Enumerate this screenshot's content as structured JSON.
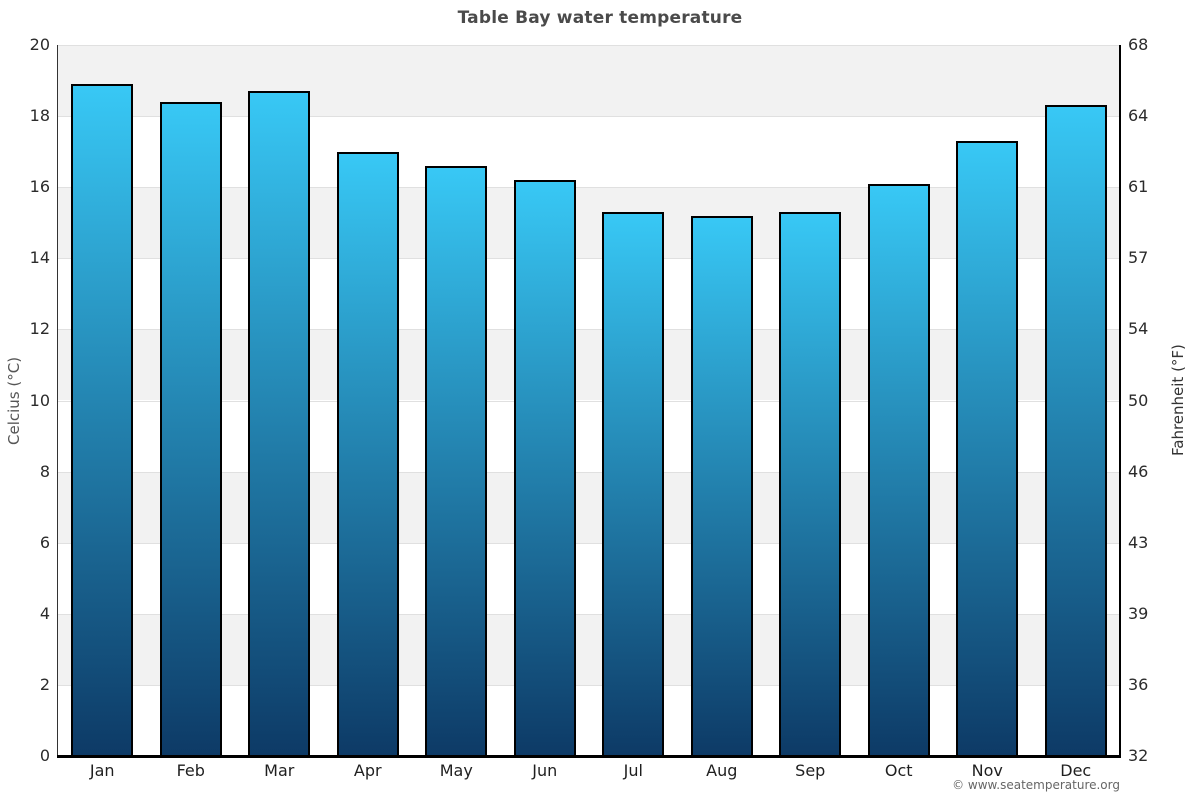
{
  "header": {
    "title": "Table Bay water temperature"
  },
  "footer": {
    "copyright": "© www.seatemperature.org"
  },
  "chart_data": {
    "type": "bar",
    "title": "Table Bay water temperature",
    "categories": [
      "Jan",
      "Feb",
      "Mar",
      "Apr",
      "May",
      "Jun",
      "Jul",
      "Aug",
      "Sep",
      "Oct",
      "Nov",
      "Dec"
    ],
    "values": [
      18.9,
      18.4,
      18.7,
      17.0,
      16.6,
      16.2,
      15.3,
      15.2,
      15.3,
      16.1,
      17.3,
      18.3
    ],
    "unit": "°C",
    "xlabel": "",
    "ylabel_left": "Celcius (°C)",
    "ylabel_right": "Fahrenheit (°F)",
    "ylim_left": [
      0,
      20
    ],
    "ylim_right": [
      32,
      68
    ],
    "yticks_left": [
      20,
      18,
      16,
      14,
      12,
      10,
      8,
      6,
      4,
      2,
      0
    ],
    "yticks_right": [
      68,
      64,
      61,
      57,
      54,
      50,
      46,
      43,
      39,
      36,
      32
    ],
    "legend": "none",
    "grid": "alternating-horizontal-bands",
    "colors": {
      "bar_gradient_top": "#38c8f5",
      "bar_gradient_bottom": "#0d3a66",
      "bar_border": "#000000",
      "band_gray": "#f2f2f2",
      "gridline": "#e0e0e0",
      "title_text": "#4a4a4a",
      "tick_text": "#2b2b2b"
    }
  }
}
